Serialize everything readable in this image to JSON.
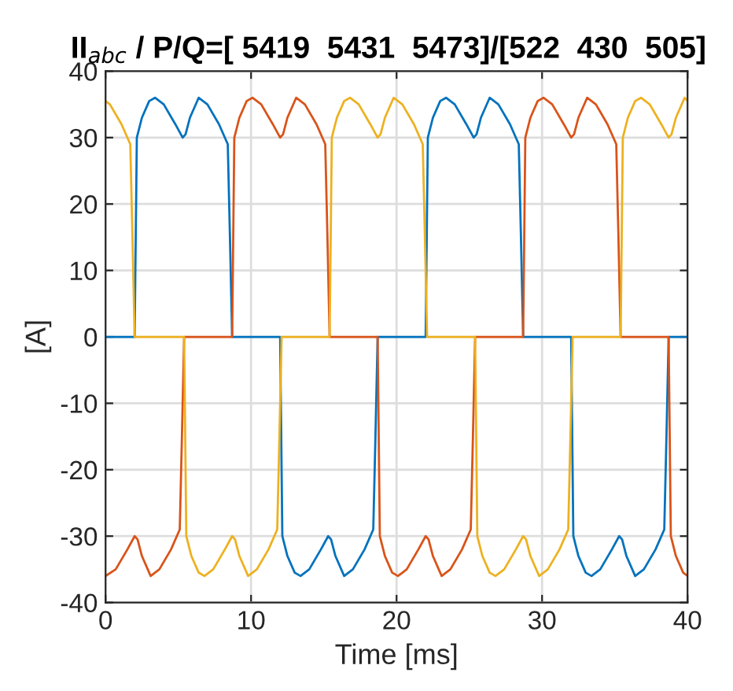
{
  "chart_data": {
    "type": "line",
    "title": "II$_{abc}$ / P/Q=[ 5419  5431  5473]/[522  430  505]",
    "xlabel": "Time [ms]",
    "ylabel": "[A]",
    "xlim": [
      0,
      40
    ],
    "xticks": [
      0,
      10,
      20,
      30,
      40
    ],
    "ylim": [
      -40,
      40
    ],
    "yticks": [
      -40,
      -30,
      -20,
      -10,
      0,
      10,
      20,
      30,
      40
    ],
    "grid": true,
    "legend": false,
    "marker": "none",
    "line_style": "solid",
    "series": [
      {
        "color": "#0072bd",
        "x": [
          0,
          2.0,
          2.15,
          2.5,
          3.0,
          3.4,
          4.0,
          4.8,
          5.3,
          5.5,
          5.8,
          6.4,
          7.0,
          7.8,
          8.4,
          8.55,
          8.7,
          12.0,
          12.15,
          12.5,
          13.0,
          13.4,
          14.0,
          14.8,
          15.3,
          15.5,
          15.8,
          16.4,
          17.0,
          17.8,
          18.4,
          18.55,
          18.7,
          22.0,
          22.15,
          22.5,
          23.0,
          23.4,
          24.0,
          24.8,
          25.3,
          25.5,
          25.8,
          26.4,
          27.0,
          27.8,
          28.4,
          28.55,
          28.7,
          32.0,
          32.15,
          32.5,
          33.0,
          33.4,
          34.0,
          34.8,
          35.3,
          35.5,
          35.8,
          36.4,
          37.0,
          37.8,
          38.4,
          38.55,
          38.7,
          40
        ],
        "values": [
          0,
          0,
          30,
          33,
          35.5,
          36,
          35,
          32,
          30,
          30.5,
          33,
          36,
          35,
          32,
          29,
          15,
          0,
          0,
          -30,
          -33,
          -35.5,
          -36,
          -35,
          -32,
          -30,
          -30.5,
          -33,
          -36,
          -35,
          -32,
          -29,
          -15,
          0,
          0,
          30,
          33,
          35.5,
          36,
          35,
          32,
          30,
          30.5,
          33,
          36,
          35,
          32,
          29,
          15,
          0,
          0,
          -30,
          -33,
          -35.5,
          -36,
          -35,
          -32,
          -30,
          -30.5,
          -33,
          -36,
          -35,
          -32,
          -29,
          -15,
          0,
          0
        ]
      },
      {
        "color": "#d95319",
        "x": [
          0,
          0.7,
          1.5,
          2.0,
          2.2,
          2.5,
          3.1,
          3.7,
          4.5,
          5.1,
          5.25,
          5.4,
          8.7,
          8.85,
          9.2,
          9.7,
          10.1,
          10.7,
          11.5,
          12.0,
          12.2,
          12.5,
          13.1,
          13.7,
          14.5,
          15.1,
          15.25,
          15.4,
          18.7,
          18.85,
          19.2,
          19.7,
          20.1,
          20.7,
          21.5,
          22.0,
          22.2,
          22.5,
          23.1,
          23.7,
          24.5,
          25.1,
          25.25,
          25.4,
          28.7,
          28.85,
          29.2,
          29.7,
          30.1,
          30.7,
          31.5,
          32.0,
          32.2,
          32.5,
          33.1,
          33.7,
          34.5,
          35.1,
          35.25,
          35.4,
          38.7,
          38.85,
          39.2,
          39.7,
          40
        ],
        "values": [
          -36,
          -35,
          -32,
          -30,
          -30.5,
          -33,
          -36,
          -35,
          -32,
          -29,
          -15,
          0,
          0,
          30,
          33,
          35.5,
          36,
          35,
          32,
          30,
          30.5,
          33,
          36,
          35,
          32,
          29,
          15,
          0,
          0,
          -30,
          -33,
          -35.5,
          -36,
          -35,
          -32,
          -30,
          -30.5,
          -33,
          -36,
          -35,
          -32,
          -29,
          -15,
          0,
          0,
          30,
          33,
          35.5,
          36,
          35,
          32,
          30,
          30.5,
          33,
          36,
          35,
          32,
          29,
          15,
          0,
          0,
          -30,
          -33,
          -35.5,
          -36
        ]
      },
      {
        "color": "#edb120",
        "x": [
          0,
          0.3,
          1.1,
          1.7,
          1.85,
          2.0,
          5.4,
          5.55,
          5.9,
          6.4,
          6.8,
          7.4,
          8.2,
          8.7,
          8.9,
          9.2,
          9.8,
          10.4,
          11.2,
          11.8,
          11.95,
          12.1,
          15.4,
          15.55,
          15.9,
          16.4,
          16.8,
          17.4,
          18.2,
          18.7,
          18.9,
          19.2,
          19.8,
          20.4,
          21.2,
          21.8,
          21.95,
          22.1,
          25.4,
          25.55,
          25.9,
          26.4,
          26.8,
          27.4,
          28.2,
          28.7,
          28.9,
          29.2,
          29.8,
          30.4,
          31.2,
          31.8,
          31.95,
          32.1,
          35.4,
          35.55,
          35.9,
          36.4,
          36.8,
          37.4,
          38.2,
          38.7,
          38.9,
          39.2,
          39.8,
          40
        ],
        "values": [
          35.5,
          35,
          32,
          29,
          15,
          0,
          0,
          -30,
          -33,
          -35.5,
          -36,
          -35,
          -32,
          -30,
          -30.5,
          -33,
          -36,
          -35,
          -32,
          -29,
          -15,
          0,
          0,
          30,
          33,
          35.5,
          36,
          35,
          32,
          30,
          30.5,
          33,
          36,
          35,
          32,
          29,
          15,
          0,
          0,
          -30,
          -33,
          -35.5,
          -36,
          -35,
          -32,
          -30,
          -30.5,
          -33,
          -36,
          -35,
          -32,
          -29,
          -15,
          0,
          0,
          30,
          33,
          35.5,
          36,
          35,
          32,
          30,
          30.5,
          33,
          36,
          35.5
        ]
      }
    ]
  }
}
